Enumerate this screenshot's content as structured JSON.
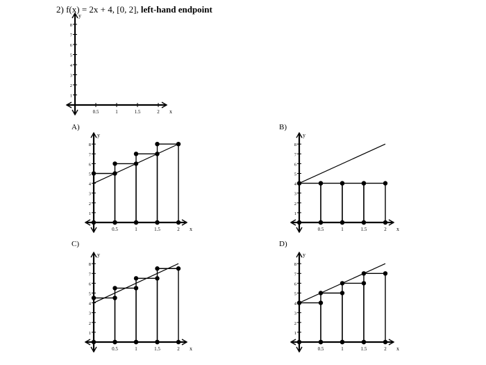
{
  "question": {
    "number": "2)",
    "function": "f(x) = 2x + 4, [0, 2],",
    "method": "left-hand endpoint"
  },
  "axis_labels": {
    "x": "x",
    "y": "y"
  },
  "x_ticks": [
    "0.5",
    "1",
    "1.5",
    "2"
  ],
  "y_ticks": [
    "1",
    "2",
    "3",
    "4",
    "5",
    "6",
    "7",
    "8"
  ],
  "options": [
    {
      "letter": "A)"
    },
    {
      "letter": "B)"
    },
    {
      "letter": "C)"
    },
    {
      "letter": "D)"
    }
  ],
  "chart_data": [
    {
      "type": "line",
      "panel": "question",
      "line": null,
      "rectangles": [],
      "xlim": [
        0,
        2
      ],
      "ylim": [
        0,
        8
      ]
    },
    {
      "type": "line",
      "panel": "A",
      "line": {
        "x": [
          0,
          2
        ],
        "y": [
          4,
          8
        ]
      },
      "rectangles": [
        {
          "x0": 0,
          "x1": 0.5,
          "height": 5
        },
        {
          "x0": 0.5,
          "x1": 1,
          "height": 6
        },
        {
          "x0": 1,
          "x1": 1.5,
          "height": 7
        },
        {
          "x0": 1.5,
          "x1": 2,
          "height": 8
        }
      ],
      "xlim": [
        0,
        2
      ],
      "ylim": [
        0,
        8
      ]
    },
    {
      "type": "line",
      "panel": "B",
      "line": {
        "x": [
          0,
          2
        ],
        "y": [
          4,
          8
        ]
      },
      "rectangles": [
        {
          "x0": 0,
          "x1": 0.5,
          "height": 4
        },
        {
          "x0": 0.5,
          "x1": 1,
          "height": 4
        },
        {
          "x0": 1,
          "x1": 1.5,
          "height": 4
        },
        {
          "x0": 1.5,
          "x1": 2,
          "height": 4
        }
      ],
      "xlim": [
        0,
        2
      ],
      "ylim": [
        0,
        8
      ]
    },
    {
      "type": "line",
      "panel": "C",
      "line": {
        "x": [
          0,
          2
        ],
        "y": [
          4,
          8
        ]
      },
      "rectangles": [
        {
          "x0": 0,
          "x1": 0.5,
          "height": 4.5
        },
        {
          "x0": 0.5,
          "x1": 1,
          "height": 5.5
        },
        {
          "x0": 1,
          "x1": 1.5,
          "height": 6.5
        },
        {
          "x0": 1.5,
          "x1": 2,
          "height": 7.5
        }
      ],
      "xlim": [
        0,
        2
      ],
      "ylim": [
        0,
        8
      ]
    },
    {
      "type": "line",
      "panel": "D",
      "line": {
        "x": [
          0,
          2
        ],
        "y": [
          4,
          8
        ]
      },
      "rectangles": [
        {
          "x0": 0,
          "x1": 0.5,
          "height": 4
        },
        {
          "x0": 0.5,
          "x1": 1,
          "height": 5
        },
        {
          "x0": 1,
          "x1": 1.5,
          "height": 6
        },
        {
          "x0": 1.5,
          "x1": 2,
          "height": 7
        }
      ],
      "xlim": [
        0,
        2
      ],
      "ylim": [
        0,
        8
      ]
    }
  ]
}
